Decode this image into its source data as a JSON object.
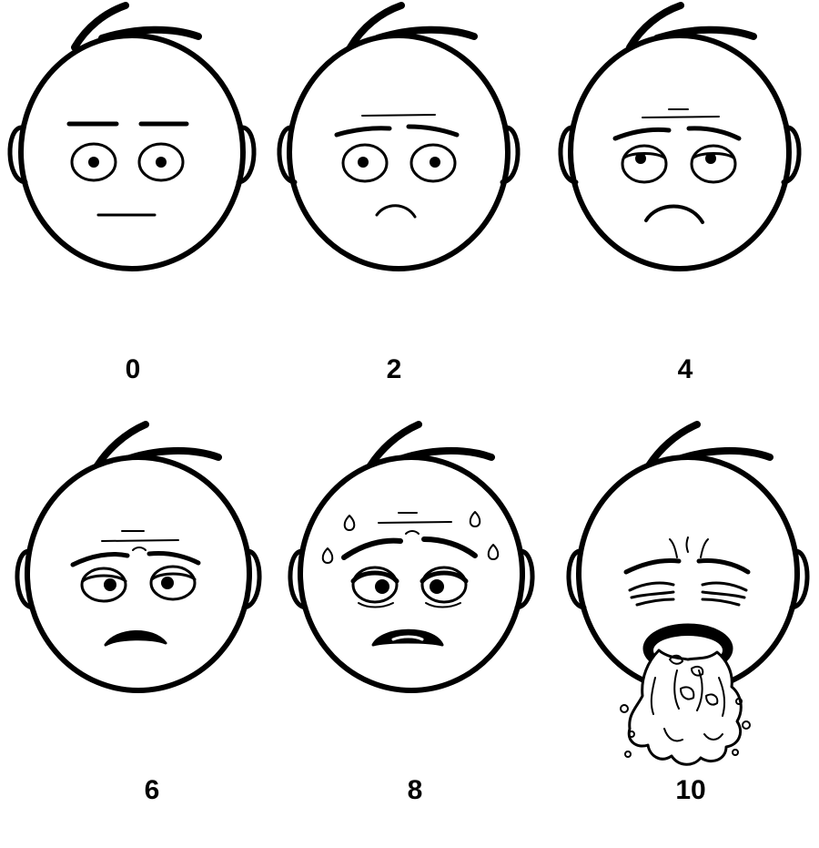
{
  "scale": {
    "stroke_color": "#000000",
    "background_color": "#ffffff",
    "faces": [
      {
        "score": "0",
        "expression": "neutral"
      },
      {
        "score": "2",
        "expression": "slight-frown"
      },
      {
        "score": "4",
        "expression": "frown"
      },
      {
        "score": "6",
        "expression": "sad-droopy-eyes"
      },
      {
        "score": "8",
        "expression": "sweating-distressed"
      },
      {
        "score": "10",
        "expression": "vomiting"
      }
    ]
  }
}
